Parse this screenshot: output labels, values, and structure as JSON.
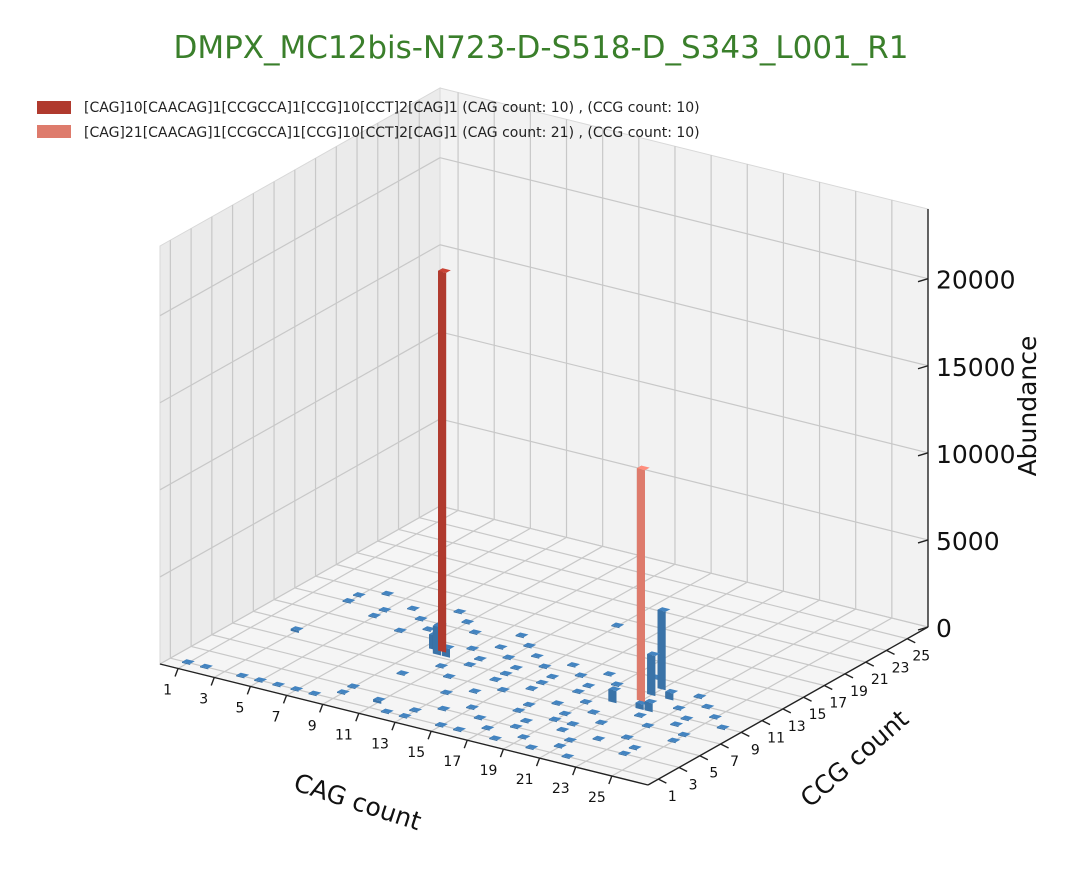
{
  "chart_data": {
    "type": "bar3d",
    "title": "DMPX_MC12bis-N723-D-S518-D_S343_L001_R1",
    "xlabel": "CAG count",
    "ylabel": "CCG count",
    "zlabel": "Abundance",
    "x_ticks": [
      "1",
      "3",
      "5",
      "7",
      "9",
      "11",
      "13",
      "15",
      "17",
      "19",
      "21",
      "23",
      "25"
    ],
    "y_ticks": [
      "1",
      "3",
      "5",
      "7",
      "9",
      "11",
      "13",
      "15",
      "17",
      "19",
      "21",
      "23",
      "25"
    ],
    "z_ticks": [
      "0",
      "5000",
      "10000",
      "15000",
      "20000"
    ],
    "xlim": [
      0,
      27
    ],
    "ylim": [
      0,
      27
    ],
    "zlim": [
      0,
      24000
    ],
    "grid": true,
    "legend_position": "top-left",
    "colors": {
      "title": "#3a7f2b",
      "background_bars": "#3a73a8",
      "allele_1": "#b03a2e",
      "allele_2": "#de7b6c"
    },
    "highlight_series": [
      {
        "name": "[CAG]10[CAACAG]1[CCGCCA]1[CCG]10[CCT]2[CAG]1  (CAG count: 10) , (CCG count: 10)",
        "cag": 10,
        "ccg": 10,
        "value": 21800,
        "color": "#b03a2e"
      },
      {
        "name": "[CAG]21[CAACAG]1[CCGCCA]1[CCG]10[CCT]2[CAG]1  (CAG count: 21) , (CCG count: 10)",
        "cag": 21,
        "ccg": 10,
        "value": 13300,
        "color": "#de7b6c"
      }
    ],
    "background_bars": [
      {
        "cag": 9.5,
        "ccg": 10.5,
        "value": 1200
      },
      {
        "cag": 9.5,
        "ccg": 10,
        "value": 800
      },
      {
        "cag": 10,
        "ccg": 9.5,
        "value": 1600
      },
      {
        "cag": 10.5,
        "ccg": 9.5,
        "value": 500
      },
      {
        "cag": 21,
        "ccg": 12,
        "value": 4500
      },
      {
        "cag": 21,
        "ccg": 11,
        "value": 2300
      },
      {
        "cag": 20,
        "ccg": 9,
        "value": 700
      },
      {
        "cag": 22,
        "ccg": 9,
        "value": 500
      },
      {
        "cag": 22,
        "ccg": 11,
        "value": 400
      },
      {
        "cag": 21.5,
        "ccg": 9,
        "value": 300
      },
      {
        "cag": 11,
        "ccg": 2,
        "value": 150
      },
      {
        "cag": 3,
        "ccg": 8,
        "value": 120
      },
      {
        "cag": 1,
        "ccg": 1,
        "value": 50
      },
      {
        "cag": 2,
        "ccg": 1,
        "value": 50
      },
      {
        "cag": 4,
        "ccg": 1,
        "value": 50
      },
      {
        "cag": 5,
        "ccg": 1,
        "value": 50
      },
      {
        "cag": 6,
        "ccg": 1,
        "value": 50
      },
      {
        "cag": 7,
        "ccg": 1,
        "value": 50
      },
      {
        "cag": 8,
        "ccg": 1,
        "value": 50
      },
      {
        "cag": 12,
        "ccg": 1,
        "value": 50
      },
      {
        "cag": 13,
        "ccg": 1,
        "value": 50
      },
      {
        "cag": 15,
        "ccg": 1,
        "value": 50
      },
      {
        "cag": 16,
        "ccg": 1,
        "value": 50
      },
      {
        "cag": 18,
        "ccg": 1,
        "value": 50
      },
      {
        "cag": 20,
        "ccg": 1,
        "value": 50
      },
      {
        "cag": 22,
        "ccg": 1,
        "value": 50
      },
      {
        "cag": 9,
        "ccg": 2,
        "value": 50
      },
      {
        "cag": 13,
        "ccg": 2,
        "value": 50
      },
      {
        "cag": 17,
        "ccg": 2,
        "value": 50
      },
      {
        "cag": 19,
        "ccg": 2,
        "value": 50
      },
      {
        "cag": 21,
        "ccg": 2,
        "value": 50
      },
      {
        "cag": 9,
        "ccg": 3,
        "value": 50
      },
      {
        "cag": 14,
        "ccg": 3,
        "value": 50
      },
      {
        "cag": 16,
        "ccg": 3,
        "value": 50
      },
      {
        "cag": 18,
        "ccg": 3,
        "value": 50
      },
      {
        "cag": 21,
        "ccg": 3,
        "value": 50
      },
      {
        "cag": 24,
        "ccg": 3,
        "value": 50
      },
      {
        "cag": 15,
        "ccg": 4,
        "value": 50
      },
      {
        "cag": 18,
        "ccg": 4,
        "value": 50
      },
      {
        "cag": 20,
        "ccg": 4,
        "value": 50
      },
      {
        "cag": 22,
        "ccg": 4,
        "value": 50
      },
      {
        "cag": 24,
        "ccg": 4,
        "value": 50
      },
      {
        "cag": 13,
        "ccg": 5,
        "value": 50
      },
      {
        "cag": 17,
        "ccg": 5,
        "value": 50
      },
      {
        "cag": 19,
        "ccg": 5,
        "value": 50
      },
      {
        "cag": 20,
        "ccg": 5,
        "value": 50
      },
      {
        "cag": 23,
        "ccg": 5,
        "value": 50
      },
      {
        "cag": 10,
        "ccg": 6,
        "value": 50
      },
      {
        "cag": 14,
        "ccg": 6,
        "value": 50
      },
      {
        "cag": 17,
        "ccg": 6,
        "value": 50
      },
      {
        "cag": 19,
        "ccg": 6,
        "value": 50
      },
      {
        "cag": 21,
        "ccg": 6,
        "value": 50
      },
      {
        "cag": 25,
        "ccg": 6,
        "value": 50
      },
      {
        "cag": 12,
        "ccg": 7,
        "value": 50
      },
      {
        "cag": 15,
        "ccg": 7,
        "value": 50
      },
      {
        "cag": 18,
        "ccg": 7,
        "value": 50
      },
      {
        "cag": 20,
        "ccg": 7,
        "value": 50
      },
      {
        "cag": 23,
        "ccg": 7,
        "value": 50
      },
      {
        "cag": 25,
        "ccg": 7,
        "value": 50
      },
      {
        "cag": 11,
        "ccg": 8,
        "value": 50
      },
      {
        "cag": 14,
        "ccg": 8,
        "value": 50
      },
      {
        "cag": 16,
        "ccg": 8,
        "value": 50
      },
      {
        "cag": 19,
        "ccg": 8,
        "value": 50
      },
      {
        "cag": 22,
        "ccg": 8,
        "value": 50
      },
      {
        "cag": 24,
        "ccg": 8,
        "value": 50
      },
      {
        "cag": 12,
        "ccg": 9,
        "value": 50
      },
      {
        "cag": 14,
        "ccg": 9,
        "value": 50
      },
      {
        "cag": 16,
        "ccg": 9,
        "value": 50
      },
      {
        "cag": 18,
        "ccg": 9,
        "value": 50
      },
      {
        "cag": 24,
        "ccg": 9,
        "value": 50
      },
      {
        "cag": 26,
        "ccg": 9,
        "value": 50
      },
      {
        "cag": 12,
        "ccg": 10,
        "value": 50
      },
      {
        "cag": 14,
        "ccg": 10,
        "value": 50
      },
      {
        "cag": 16,
        "ccg": 10,
        "value": 50
      },
      {
        "cag": 18,
        "ccg": 10,
        "value": 50
      },
      {
        "cag": 23,
        "ccg": 10,
        "value": 50
      },
      {
        "cag": 25,
        "ccg": 10,
        "value": 50
      },
      {
        "cag": 7,
        "ccg": 11,
        "value": 50
      },
      {
        "cag": 11,
        "ccg": 11,
        "value": 50
      },
      {
        "cag": 13,
        "ccg": 11,
        "value": 50
      },
      {
        "cag": 15,
        "ccg": 11,
        "value": 50
      },
      {
        "cag": 17,
        "ccg": 11,
        "value": 50
      },
      {
        "cag": 19,
        "ccg": 11,
        "value": 50
      },
      {
        "cag": 24,
        "ccg": 11,
        "value": 50
      },
      {
        "cag": 5,
        "ccg": 12,
        "value": 50
      },
      {
        "cag": 8,
        "ccg": 12,
        "value": 50
      },
      {
        "cag": 12,
        "ccg": 12,
        "value": 50
      },
      {
        "cag": 14,
        "ccg": 12,
        "value": 50
      },
      {
        "cag": 16,
        "ccg": 12,
        "value": 50
      },
      {
        "cag": 18,
        "ccg": 12,
        "value": 50
      },
      {
        "cag": 23,
        "ccg": 12,
        "value": 50
      },
      {
        "cag": 3,
        "ccg": 13,
        "value": 50
      },
      {
        "cag": 5,
        "ccg": 13,
        "value": 50
      },
      {
        "cag": 7,
        "ccg": 13,
        "value": 50
      },
      {
        "cag": 10,
        "ccg": 13,
        "value": 50
      },
      {
        "cag": 13,
        "ccg": 13,
        "value": 50
      },
      {
        "cag": 20,
        "ccg": 13,
        "value": 50
      },
      {
        "cag": 3,
        "ccg": 14,
        "value": 50
      },
      {
        "cag": 6,
        "ccg": 14,
        "value": 50
      },
      {
        "cag": 9,
        "ccg": 14,
        "value": 50
      },
      {
        "cag": 12,
        "ccg": 14,
        "value": 50
      },
      {
        "cag": 4,
        "ccg": 15,
        "value": 50
      },
      {
        "cag": 8,
        "ccg": 15,
        "value": 50
      },
      {
        "cag": 15,
        "ccg": 18,
        "value": 50
      }
    ]
  },
  "legend": [
    {
      "label": "[CAG]10[CAACAG]1[CCGCCA]1[CCG]10[CCT]2[CAG]1  (CAG count: 10) , (CCG count: 10)",
      "color": "#b03a2e"
    },
    {
      "label": "[CAG]21[CAACAG]1[CCGCCA]1[CCG]10[CCT]2[CAG]1  (CAG count: 21) , (CCG count: 10)",
      "color": "#de7b6c"
    }
  ]
}
